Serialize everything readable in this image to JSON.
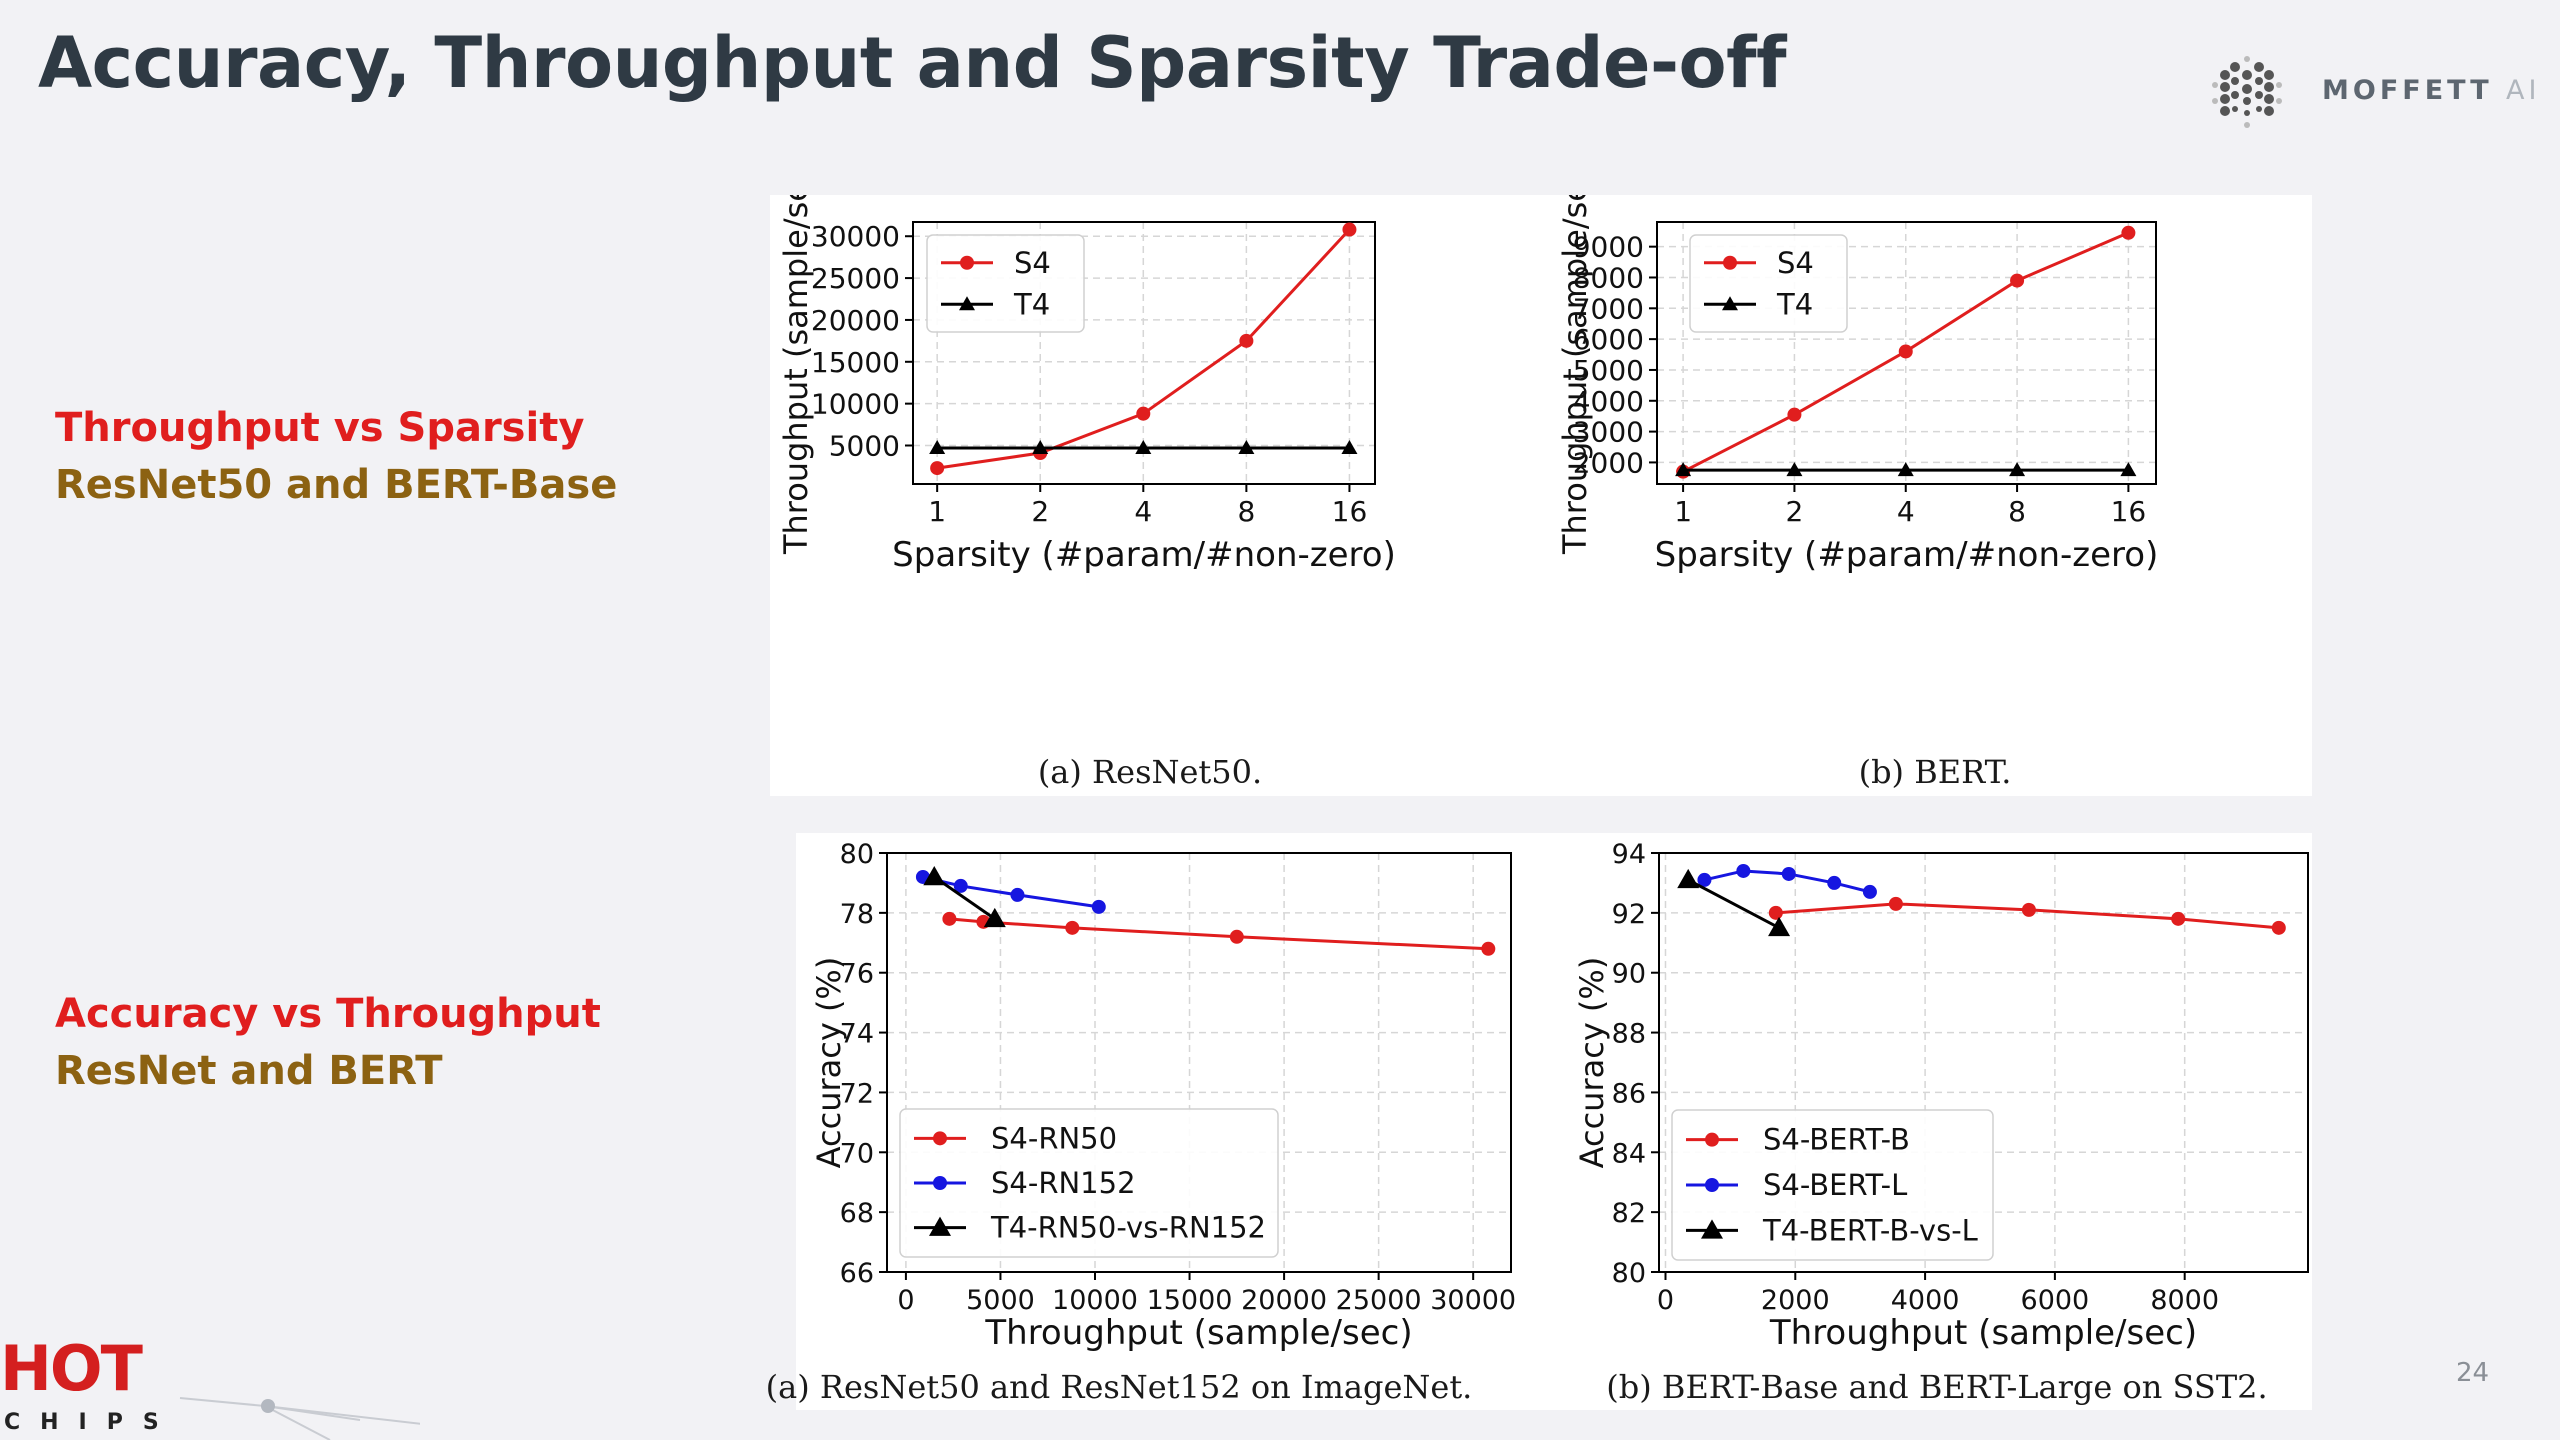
{
  "slide": {
    "title": "Accuracy, Throughput and Sparsity Trade-off",
    "page_number": "24"
  },
  "brand": {
    "logo_word": "MOFFETT",
    "logo_suffix": "AI"
  },
  "footer_logo": {
    "hot": "HOT",
    "chips": "CHIPS"
  },
  "sections": {
    "throughput_vs_sparsity": {
      "title": "Throughput vs Sparsity",
      "subtitle": "ResNet50 and BERT-Base"
    },
    "accuracy_vs_throughput": {
      "title": "Accuracy vs Throughput",
      "subtitle": "ResNet and BERT"
    }
  },
  "colors": {
    "red": "#e01e1e",
    "blue": "#1616e0",
    "black": "#000000",
    "gold": "#8c6212"
  },
  "chart_data": [
    {
      "id": "resnet50-sparsity",
      "type": "line",
      "caption": "(a)  ResNet50.",
      "xlabel": "Sparsity  (#param/#non-zero)",
      "ylabel": "Throughput (sample/sec)",
      "xscale": "log2",
      "xlim": [
        0.85,
        19
      ],
      "xticks": [
        1,
        2,
        4,
        8,
        16
      ],
      "xticklabels": [
        "1",
        "2",
        "4",
        "8",
        "16"
      ],
      "ylim": [
        400,
        31700
      ],
      "yticks": [
        5000,
        10000,
        15000,
        20000,
        25000,
        30000
      ],
      "yticklabels": [
        "5000",
        "10000",
        "15000",
        "20000",
        "25000",
        "30000"
      ],
      "legend_location": "top-left",
      "series": [
        {
          "name": "S4",
          "color": "#e01e1e",
          "marker": "circle",
          "x": [
            1,
            2,
            4,
            8,
            16
          ],
          "y": [
            2300,
            4100,
            8800,
            17500,
            30800
          ]
        },
        {
          "name": "T4",
          "color": "#000000",
          "marker": "triangle",
          "x": [
            1,
            2,
            4,
            8,
            16
          ],
          "y": [
            4700,
            4700,
            4700,
            4700,
            4700
          ]
        }
      ]
    },
    {
      "id": "bert-sparsity",
      "type": "line",
      "caption": "(b)  BERT.",
      "xlabel": "Sparsity  (#param/#non-zero)",
      "ylabel": "Throughput (sample/sec)",
      "xscale": "log2",
      "xlim": [
        0.85,
        19
      ],
      "xticks": [
        1,
        2,
        4,
        8,
        16
      ],
      "xticklabels": [
        "1",
        "2",
        "4",
        "8",
        "16"
      ],
      "ylim": [
        1300,
        9800
      ],
      "yticks": [
        2000,
        3000,
        4000,
        5000,
        6000,
        7000,
        8000,
        9000
      ],
      "yticklabels": [
        "2000",
        "3000",
        "4000",
        "5000",
        "6000",
        "7000",
        "8000",
        "9000"
      ],
      "legend_location": "top-left",
      "series": [
        {
          "name": "S4",
          "color": "#e01e1e",
          "marker": "circle",
          "x": [
            1,
            2,
            4,
            8,
            16
          ],
          "y": [
            1700,
            3550,
            5600,
            7900,
            9450
          ]
        },
        {
          "name": "T4",
          "color": "#000000",
          "marker": "triangle",
          "x": [
            1,
            2,
            4,
            8,
            16
          ],
          "y": [
            1750,
            1750,
            1750,
            1750,
            1750
          ]
        }
      ]
    },
    {
      "id": "resnet-accuracy",
      "type": "line",
      "caption": "(a)  ResNet50 and ResNet152 on ImageNet.",
      "xlabel": "Throughput (sample/sec)",
      "ylabel": "Accuracy (%)",
      "xscale": "linear",
      "xlim": [
        -1000,
        32000
      ],
      "xticks": [
        0,
        5000,
        10000,
        15000,
        20000,
        25000,
        30000
      ],
      "xticklabels": [
        "0",
        "5000",
        "10000",
        "15000",
        "20000",
        "25000",
        "30000"
      ],
      "ylim": [
        66,
        80
      ],
      "yticks": [
        66,
        68,
        70,
        72,
        74,
        76,
        78,
        80
      ],
      "yticklabels": [
        "66",
        "68",
        "70",
        "72",
        "74",
        "76",
        "78",
        "80"
      ],
      "legend_location": "bottom-left",
      "series": [
        {
          "name": "S4-RN50",
          "color": "#e01e1e",
          "marker": "circle",
          "x": [
            2300,
            4100,
            8800,
            17500,
            30800
          ],
          "y": [
            77.8,
            77.7,
            77.5,
            77.2,
            76.8
          ]
        },
        {
          "name": "S4-RN152",
          "color": "#1616e0",
          "marker": "circle",
          "x": [
            900,
            2900,
            5900,
            10200
          ],
          "y": [
            79.2,
            78.9,
            78.6,
            78.2
          ]
        },
        {
          "name": "T4-RN50-vs-RN152",
          "color": "#000000",
          "marker": "triangle",
          "x": [
            1500,
            4700
          ],
          "y": [
            79.2,
            77.8
          ]
        }
      ]
    },
    {
      "id": "bert-accuracy",
      "type": "line",
      "caption": "(b)  BERT-Base and BERT-Large on SST2.",
      "xlabel": "Throughput (sample/sec)",
      "ylabel": "Accuracy (%)",
      "xscale": "linear",
      "xlim": [
        -100,
        9900
      ],
      "xticks": [
        0,
        2000,
        4000,
        6000,
        8000
      ],
      "xticklabels": [
        "0",
        "2000",
        "4000",
        "6000",
        "8000"
      ],
      "ylim": [
        80,
        94
      ],
      "yticks": [
        80,
        82,
        84,
        86,
        88,
        90,
        92,
        94
      ],
      "yticklabels": [
        "80",
        "82",
        "84",
        "86",
        "88",
        "90",
        "92",
        "94"
      ],
      "legend_location": "bottom-left",
      "series": [
        {
          "name": "S4-BERT-B",
          "color": "#e01e1e",
          "marker": "circle",
          "x": [
            1700,
            3550,
            5600,
            7900,
            9450
          ],
          "y": [
            92.0,
            92.3,
            92.1,
            91.8,
            91.5
          ]
        },
        {
          "name": "S4-BERT-L",
          "color": "#1616e0",
          "marker": "circle",
          "x": [
            600,
            1200,
            1900,
            2600,
            3150
          ],
          "y": [
            93.1,
            93.4,
            93.3,
            93.0,
            92.7
          ]
        },
        {
          "name": "T4-BERT-B-vs-L",
          "color": "#000000",
          "marker": "triangle",
          "x": [
            350,
            1750
          ],
          "y": [
            93.1,
            91.5
          ]
        }
      ]
    }
  ]
}
